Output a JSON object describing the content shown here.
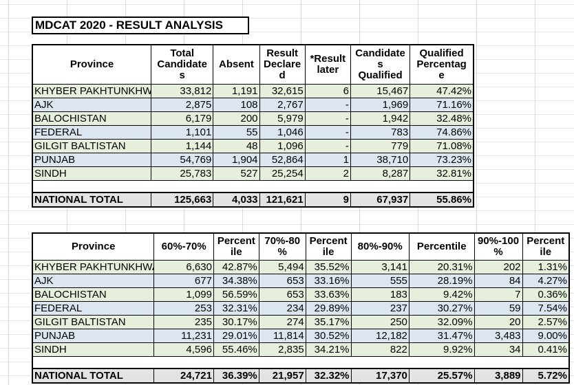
{
  "title": "MDCAT 2020 - RESULT ANALYSIS",
  "table1": {
    "headers": [
      "Province",
      "Total Candidates",
      "Absent",
      "Result Declared",
      "*Result later",
      "Candidates Qualified",
      "Qualified Percentage"
    ],
    "header_lines": [
      [
        "Province"
      ],
      [
        "Total",
        "Candidate",
        "s"
      ],
      [
        "Absent"
      ],
      [
        "Result",
        "Declare",
        "d"
      ],
      [
        "*Result",
        "later"
      ],
      [
        "Candidate",
        "s",
        "Qualified"
      ],
      [
        "Qualified",
        "Percentag",
        "e"
      ]
    ],
    "rows": [
      {
        "province": "KHYBER PAKHTUNKHWA",
        "total": "33,812",
        "absent": "1,191",
        "declared": "32,615",
        "later": "6",
        "qualified": "15,467",
        "pct": "47.42%"
      },
      {
        "province": "AJK",
        "total": "2,875",
        "absent": "108",
        "declared": "2,767",
        "later": "-",
        "qualified": "1,969",
        "pct": "71.16%"
      },
      {
        "province": "BALOCHISTAN",
        "total": "6,179",
        "absent": "200",
        "declared": "5,979",
        "later": "-",
        "qualified": "1,942",
        "pct": "32.48%"
      },
      {
        "province": "FEDERAL",
        "total": "1,101",
        "absent": "55",
        "declared": "1,046",
        "later": "-",
        "qualified": "783",
        "pct": "74.86%"
      },
      {
        "province": "GILGIT BALTISTAN",
        "total": "1,144",
        "absent": "48",
        "declared": "1,096",
        "later": "-",
        "qualified": "779",
        "pct": "71.08%"
      },
      {
        "province": "PUNJAB",
        "total": "54,769",
        "absent": "1,904",
        "declared": "52,864",
        "later": "1",
        "qualified": "38,710",
        "pct": "73.23%"
      },
      {
        "province": "SINDH",
        "total": "25,783",
        "absent": "527",
        "declared": "25,254",
        "later": "2",
        "qualified": "8,287",
        "pct": "32.81%"
      }
    ],
    "total": {
      "province": "NATIONAL TOTAL",
      "total": "125,663",
      "absent": "4,033",
      "declared": "121,621",
      "later": "9",
      "qualified": "67,937",
      "pct": "55.86%"
    }
  },
  "table2": {
    "header_lines": [
      [
        "Province"
      ],
      [
        "60%-70%"
      ],
      [
        "Percent",
        "ile"
      ],
      [
        "70%-80",
        "%"
      ],
      [
        "Percent",
        "ile"
      ],
      [
        "80%-90%"
      ],
      [
        "Percentile"
      ],
      [
        "90%-100",
        "%"
      ],
      [
        "Percent",
        "ile"
      ]
    ],
    "rows": [
      {
        "province": "KHYBER PAKHTUNKHWA",
        "c1": "6,630",
        "p1": "42.87%",
        "c2": "5,494",
        "p2": "35.52%",
        "c3": "3,141",
        "p3": "20.31%",
        "c4": "202",
        "p4": "1.31%"
      },
      {
        "province": "AJK",
        "c1": "677",
        "p1": "34.38%",
        "c2": "653",
        "p2": "33.16%",
        "c3": "555",
        "p3": "28.19%",
        "c4": "84",
        "p4": "4.27%"
      },
      {
        "province": "BALOCHISTAN",
        "c1": "1,099",
        "p1": "56.59%",
        "c2": "653",
        "p2": "33.63%",
        "c3": "183",
        "p3": "9.42%",
        "c4": "7",
        "p4": "0.36%"
      },
      {
        "province": "FEDERAL",
        "c1": "253",
        "p1": "32.31%",
        "c2": "234",
        "p2": "29.89%",
        "c3": "237",
        "p3": "30.27%",
        "c4": "59",
        "p4": "7.54%"
      },
      {
        "province": "GILGIT BALTISTAN",
        "c1": "235",
        "p1": "30.17%",
        "c2": "274",
        "p2": "35.17%",
        "c3": "250",
        "p3": "32.09%",
        "c4": "20",
        "p4": "2.57%"
      },
      {
        "province": "PUNJAB",
        "c1": "11,231",
        "p1": "29.01%",
        "c2": "11,814",
        "p2": "30.52%",
        "c3": "12,182",
        "p3": "31.47%",
        "c4": "3,483",
        "p4": "9.00%"
      },
      {
        "province": "SINDH",
        "c1": "4,596",
        "p1": "55.46%",
        "c2": "2,835",
        "p2": "34.21%",
        "c3": "822",
        "p3": "9.92%",
        "c4": "34",
        "p4": "0.41%"
      }
    ],
    "total": {
      "province": "NATIONAL TOTAL",
      "c1": "24,721",
      "p1": "36.39%",
      "c2": "21,957",
      "p2": "32.32%",
      "c3": "17,370",
      "p3": "25.57%",
      "c4": "3,889",
      "p4": "5.72%"
    }
  },
  "colors": {
    "row_green": "#e6efdb",
    "row_blue": "#dce6f1",
    "total_bg": "#e3e3e3"
  }
}
